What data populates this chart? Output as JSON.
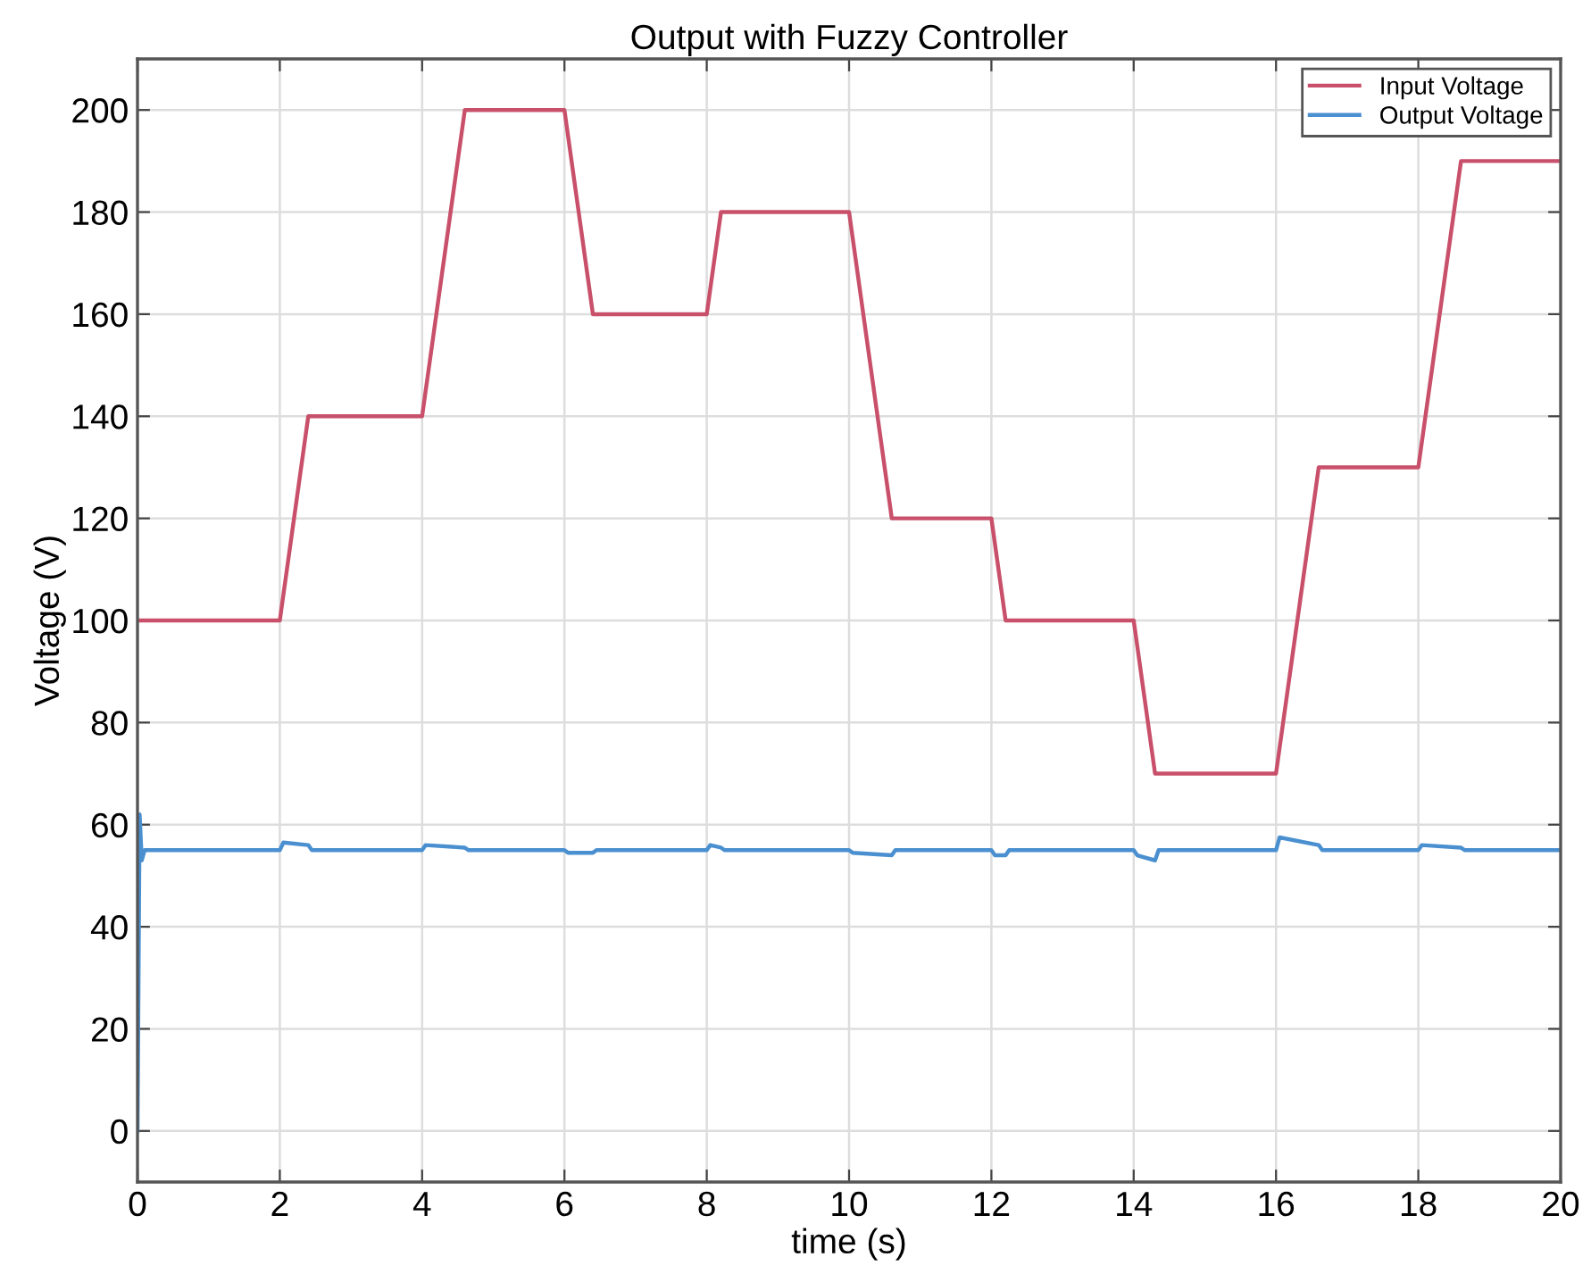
{
  "chart_data": {
    "type": "line",
    "title": "Output with Fuzzy Controller",
    "xlabel": "time (s)",
    "ylabel": "Voltage (V)",
    "xlim": [
      0,
      20
    ],
    "xticks": [
      0,
      2,
      4,
      6,
      8,
      10,
      12,
      14,
      16,
      18,
      20
    ],
    "ylim": [
      -10,
      210
    ],
    "yticks": [
      0,
      20,
      40,
      60,
      80,
      100,
      120,
      140,
      160,
      180,
      200
    ],
    "grid": true,
    "legend": "top right",
    "line_style": "solid",
    "marker": "none",
    "series": [
      {
        "name": "Input Voltage",
        "color": "#c9506a",
        "x": [
          0,
          2,
          2.4,
          4,
          4.6,
          6,
          6.4,
          8,
          8.2,
          10,
          10.6,
          12,
          12.2,
          14,
          14.3,
          16,
          16.6,
          18,
          18.6,
          20
        ],
        "values": [
          100,
          100,
          140,
          140,
          200,
          200,
          160,
          160,
          180,
          180,
          120,
          120,
          100,
          100,
          70,
          70,
          130,
          130,
          190,
          190
        ]
      },
      {
        "name": "Output Voltage",
        "color": "#4a90d0",
        "x": [
          0,
          0.03,
          0.06,
          0.1,
          2,
          2.05,
          2.4,
          2.45,
          4,
          4.05,
          4.6,
          4.65,
          6,
          6.05,
          6.4,
          6.45,
          8,
          8.05,
          8.2,
          8.25,
          10,
          10.05,
          10.6,
          10.65,
          12,
          12.05,
          12.2,
          12.25,
          14,
          14.05,
          14.3,
          14.35,
          16,
          16.05,
          16.6,
          16.65,
          18,
          18.05,
          18.6,
          18.65,
          20
        ],
        "values": [
          0,
          62,
          53,
          55,
          55,
          56.5,
          56,
          55,
          55,
          56,
          55.5,
          55,
          55,
          54.5,
          54.5,
          55,
          55,
          56,
          55.5,
          55,
          55,
          54.5,
          54,
          55,
          55,
          54,
          54,
          55,
          55,
          54,
          53,
          55,
          55,
          57.5,
          56,
          55,
          55,
          56,
          55.5,
          55,
          55
        ]
      }
    ]
  }
}
